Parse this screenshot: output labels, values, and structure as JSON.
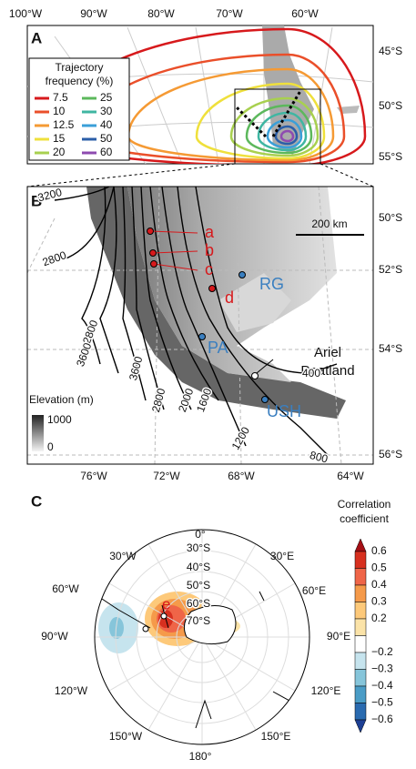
{
  "panel_a": {
    "label": "A",
    "lon_labels": [
      "100°W",
      "90°W",
      "80°W",
      "70°W",
      "60°W"
    ],
    "lat_labels": [
      "45°S",
      "50°S",
      "55°S"
    ],
    "legend": {
      "title_lines": [
        "Trajectory",
        "frequency (%)"
      ],
      "items": [
        {
          "label": "7.5",
          "color": "#d7191c"
        },
        {
          "label": "10",
          "color": "#ea4f2a"
        },
        {
          "label": "12.5",
          "color": "#f59a34"
        },
        {
          "label": "15",
          "color": "#efe03c"
        },
        {
          "label": "20",
          "color": "#a8d04f"
        },
        {
          "label": "25",
          "color": "#5cb85c"
        },
        {
          "label": "30",
          "color": "#3fb6a2"
        },
        {
          "label": "40",
          "color": "#3a9fd8"
        },
        {
          "label": "50",
          "color": "#2b5ea8"
        },
        {
          "label": "60",
          "color": "#8e4bb0"
        }
      ]
    }
  },
  "panel_b": {
    "label": "B",
    "lat_labels": [
      "50°S",
      "52°S",
      "54°S",
      "56°S"
    ],
    "lon_labels": [
      "76°W",
      "72°W",
      "68°W",
      "64°W"
    ],
    "scale_bar": "200 km",
    "contour_labels": [
      "3200",
      "2800",
      "2800",
      "3600",
      "3600",
      "2800",
      "2000",
      "1600",
      "1200",
      "800",
      "400"
    ],
    "sites": [
      {
        "label": "a",
        "color": "#d7191c"
      },
      {
        "label": "b",
        "color": "#d7191c"
      },
      {
        "label": "c",
        "color": "#d7191c"
      },
      {
        "label": "d",
        "color": "#d7191c"
      },
      {
        "label": "RG",
        "color": "#3a7fc0"
      },
      {
        "label": "PA",
        "color": "#3a7fc0"
      },
      {
        "label": "USH",
        "color": "#3a7fc0"
      }
    ],
    "peatland_lines": [
      "Ariel",
      "Peatland"
    ],
    "elevation_legend": {
      "title": "Elevation (m)",
      "max": "1000",
      "min": "0"
    }
  },
  "panel_c": {
    "label": "C",
    "lon_labels": [
      "0°",
      "30°W",
      "30°E",
      "60°W",
      "60°E",
      "90°W",
      "90°E",
      "120°W",
      "120°E",
      "150°W",
      "150°E",
      "180°"
    ],
    "lat_labels": [
      "30°S",
      "40°S",
      "50°S",
      "60°S",
      "70°S"
    ],
    "site_label": "e",
    "colorbar": {
      "title_lines": [
        "Correlation",
        "coefficient"
      ],
      "labels": [
        "0.6",
        "0.5",
        "0.4",
        "0.3",
        "0.2",
        "−0.2",
        "−0.3",
        "−0.4",
        "−0.5",
        "−0.6"
      ],
      "colors": [
        "#a50f15",
        "#d7301f",
        "#ef6548",
        "#f59a4a",
        "#fdc97a",
        "#fbe3a8",
        "#ffffff",
        "#c6e4ee",
        "#86c5da",
        "#4a9cc6",
        "#2a6bb0",
        "#1d3f94"
      ]
    }
  }
}
